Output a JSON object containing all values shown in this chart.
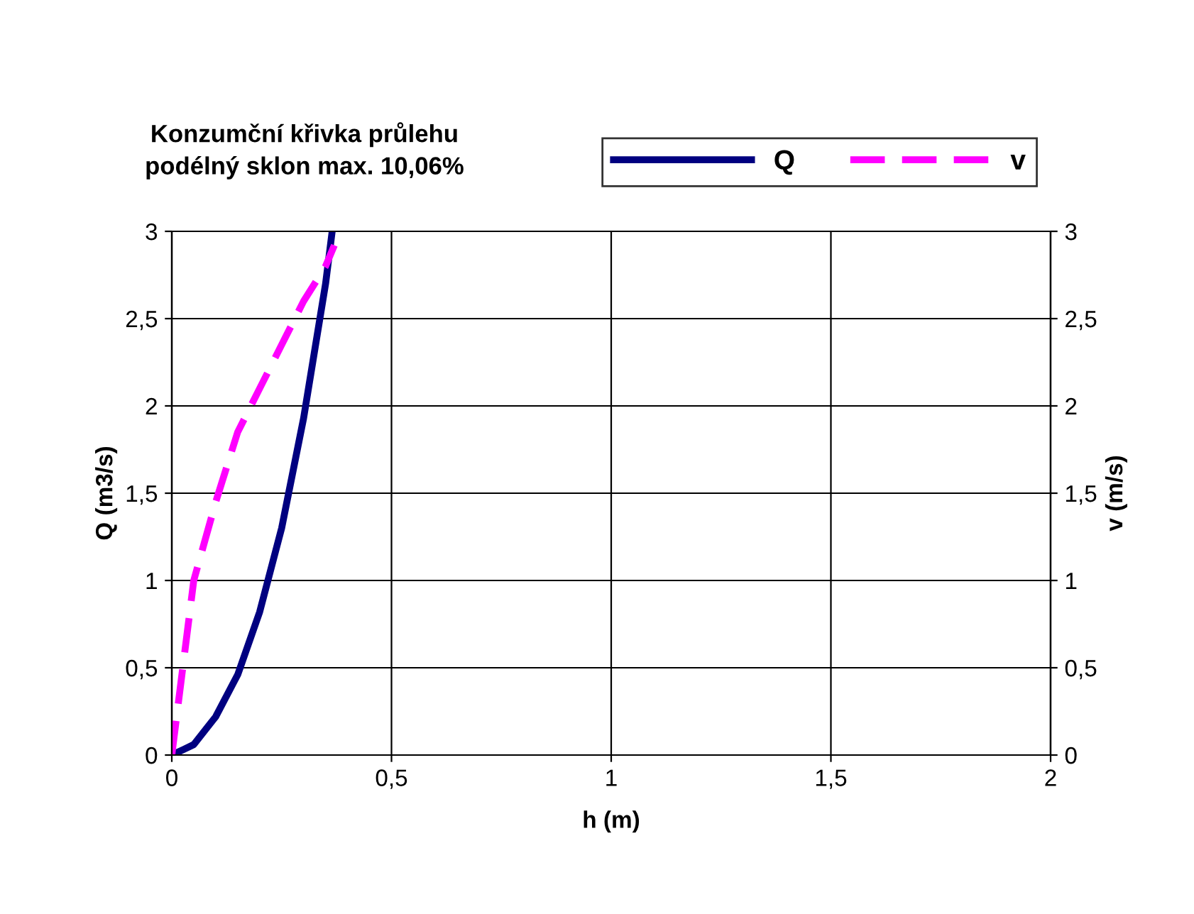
{
  "chart_data": {
    "type": "line",
    "title": "Konzumční křivka průlehu\npodélný sklon max. 10,06%",
    "xlabel": "h (m)",
    "ylabel": "Q (m3/s)",
    "y2label": "v (m/s)",
    "series": [
      {
        "name": "Q",
        "color": "#000080",
        "line_style": "solid",
        "x": [
          0,
          0.05,
          0.1,
          0.15,
          0.2,
          0.25,
          0.3,
          0.35,
          0.365
        ],
        "values": [
          0,
          0.06,
          0.22,
          0.46,
          0.82,
          1.3,
          1.93,
          2.7,
          3.0
        ]
      },
      {
        "name": "v",
        "color": "#ff00ff",
        "line_style": "dashed",
        "axis": "y2",
        "x": [
          0,
          0.05,
          0.1,
          0.15,
          0.2,
          0.25,
          0.3,
          0.35,
          0.37
        ],
        "values": [
          0,
          1.0,
          1.45,
          1.85,
          2.1,
          2.35,
          2.6,
          2.8,
          2.92
        ]
      }
    ],
    "xlim": [
      0,
      2
    ],
    "xticks": [
      {
        "value": 0,
        "label": "0"
      },
      {
        "value": 0.5,
        "label": "0,5"
      },
      {
        "value": 1,
        "label": "1"
      },
      {
        "value": 1.5,
        "label": "1,5"
      },
      {
        "value": 2,
        "label": "2"
      }
    ],
    "ylim": [
      0,
      3
    ],
    "yticks": [
      {
        "value": 0,
        "label": "0"
      },
      {
        "value": 0.5,
        "label": "0,5"
      },
      {
        "value": 1,
        "label": "1"
      },
      {
        "value": 1.5,
        "label": "1,5"
      },
      {
        "value": 2,
        "label": "2"
      },
      {
        "value": 2.5,
        "label": "2,5"
      },
      {
        "value": 3,
        "label": "3"
      }
    ],
    "y2lim": [
      0,
      3
    ],
    "y2ticks": [
      {
        "value": 0,
        "label": "0"
      },
      {
        "value": 0.5,
        "label": "0,5"
      },
      {
        "value": 1,
        "label": "1"
      },
      {
        "value": 1.5,
        "label": "1,5"
      },
      {
        "value": 2,
        "label": "2"
      },
      {
        "value": 2.5,
        "label": "2,5"
      },
      {
        "value": 3,
        "label": "3"
      }
    ],
    "grid": true,
    "legend": "top right"
  }
}
